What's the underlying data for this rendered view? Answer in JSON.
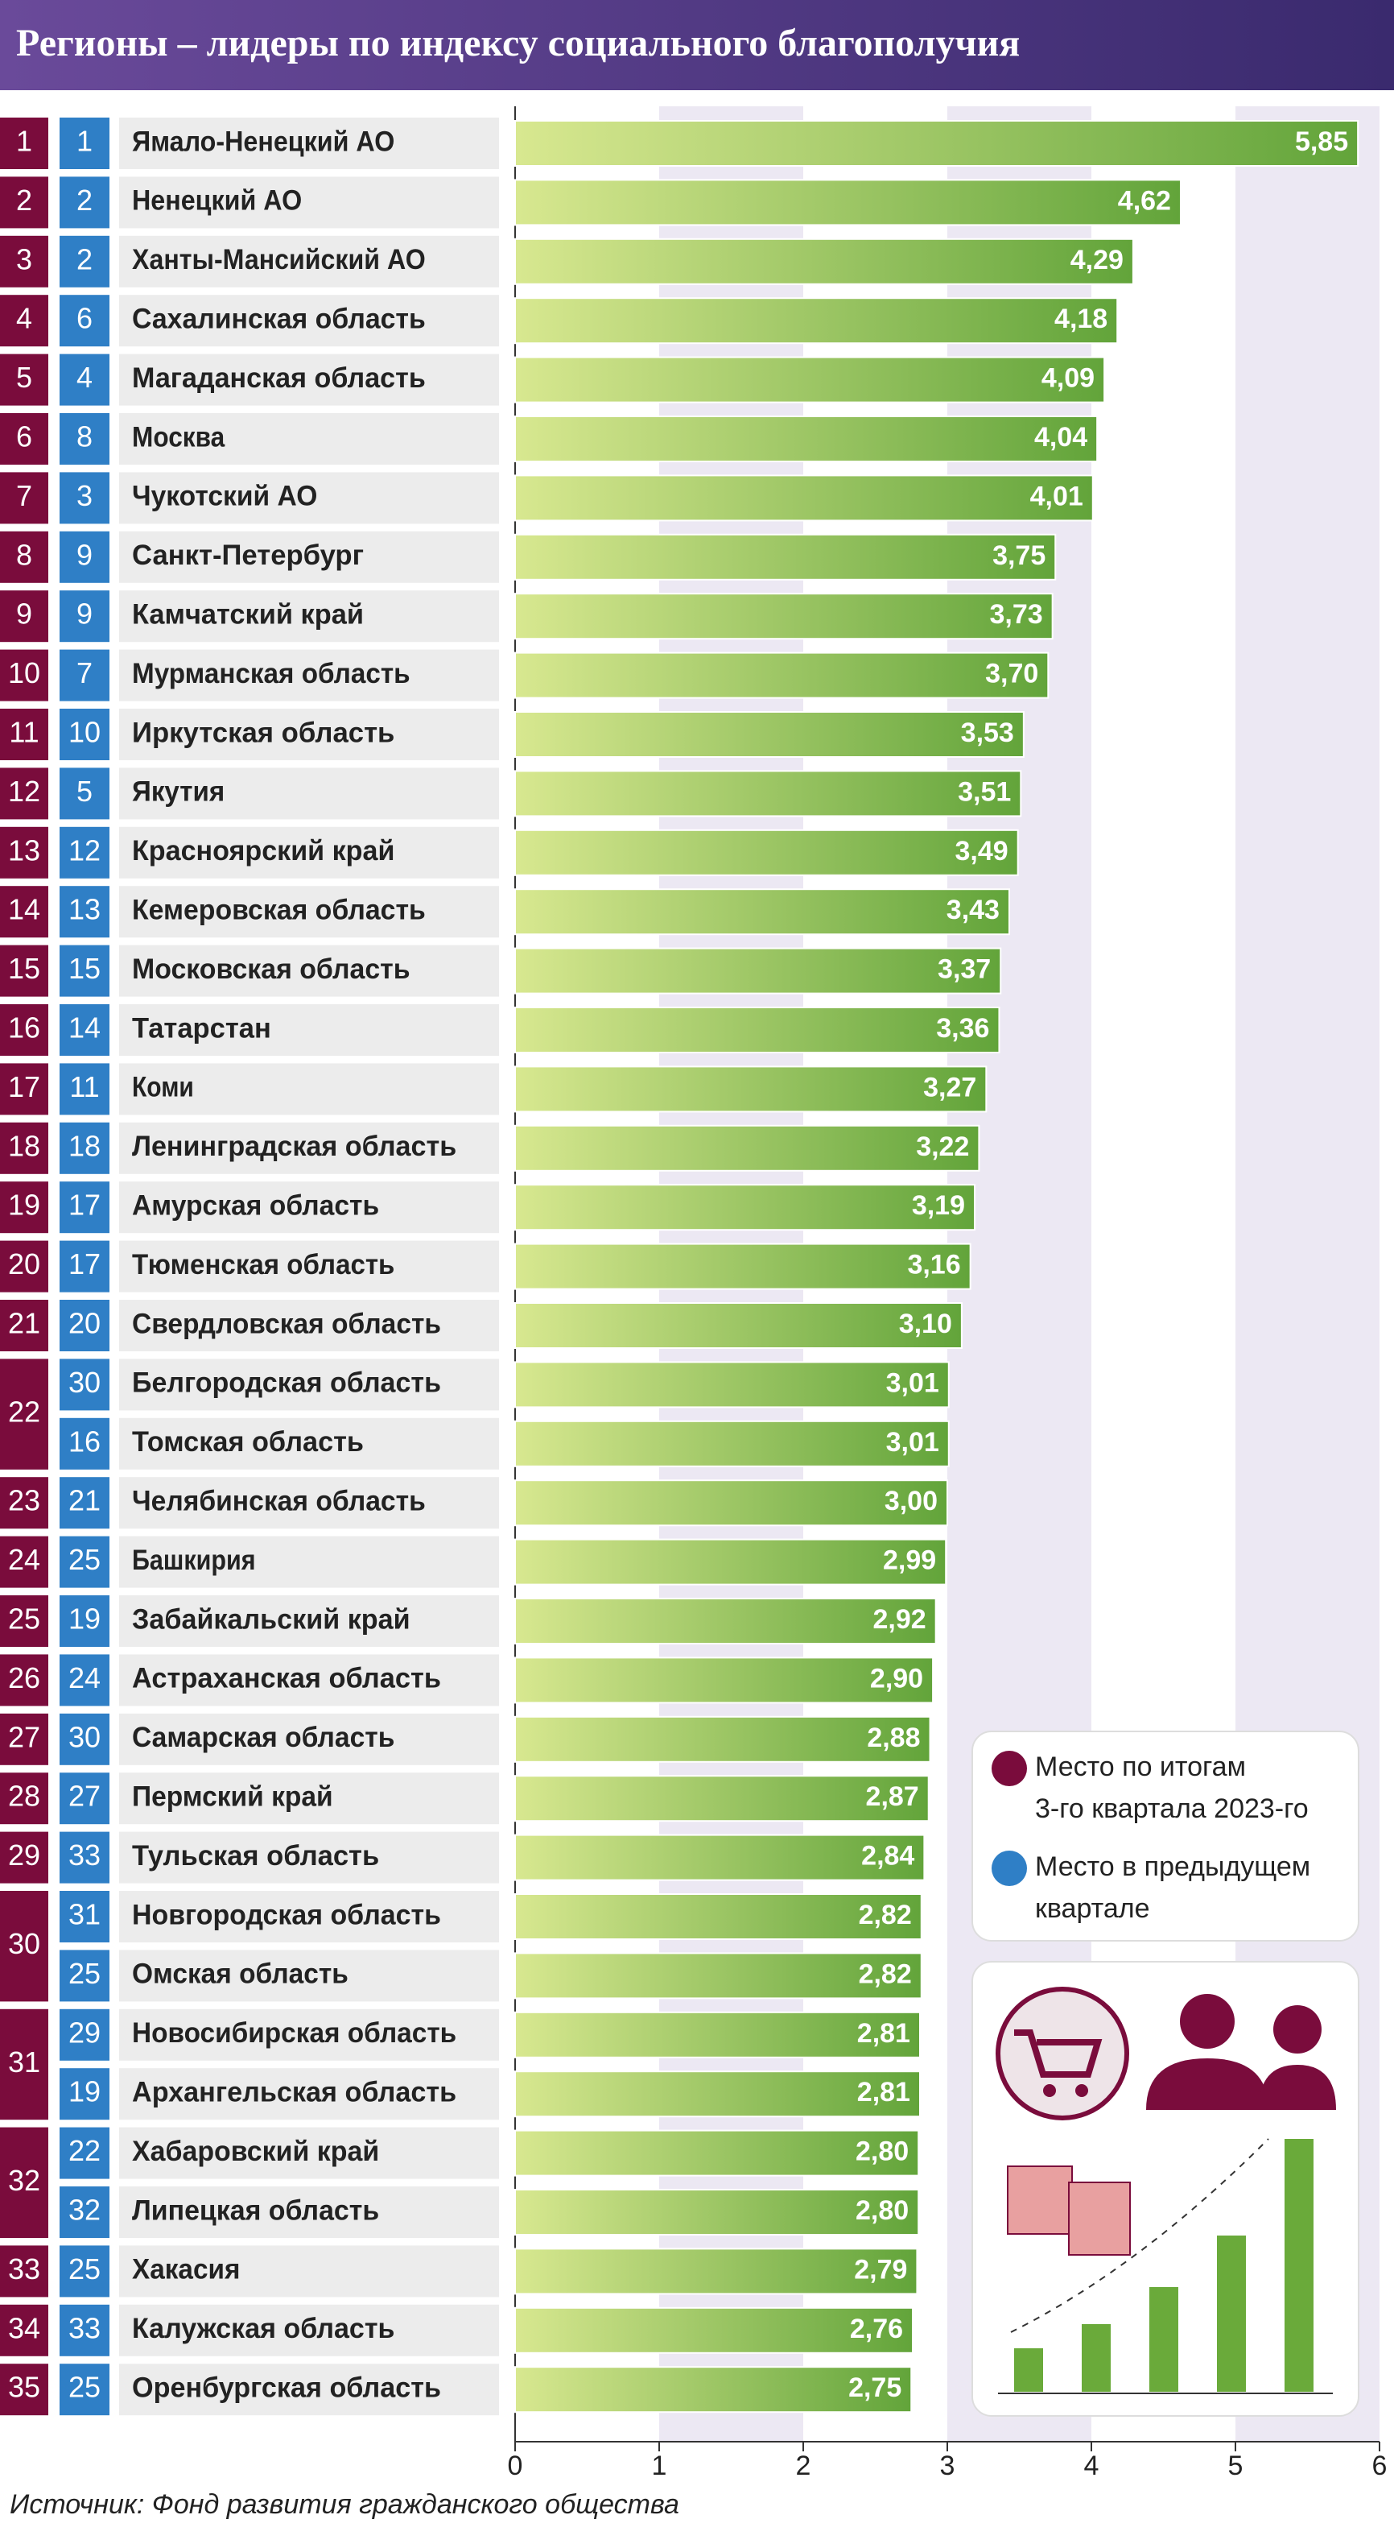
{
  "chart_data": {
    "type": "bar",
    "orientation": "horizontal",
    "title": "Регионы – лидеры по индексу социального благополучия",
    "categories": [
      "Ямало-Ненецкий АО",
      "Ненецкий АО",
      "Ханты-Мансийский АО",
      "Сахалинская область",
      "Магаданская область",
      "Москва",
      "Чукотский АО",
      "Санкт-Петербург",
      "Камчатский край",
      "Мурманская область",
      "Иркутская область",
      "Якутия",
      "Красноярский край",
      "Кемеровская область",
      "Московская область",
      "Татарстан",
      "Коми",
      "Ленинградская область",
      "Амурская область",
      "Тюменская область",
      "Свердловская область",
      "Белгородская область",
      "Томская область",
      "Челябинская область",
      "Башкирия",
      "Забайкальский край",
      "Астраханская область",
      "Самарская область",
      "Пермский край",
      "Тульская область",
      "Новгородская область",
      "Омская область",
      "Новосибирская область",
      "Архангельская область",
      "Хабаровский край",
      "Липецкая область",
      "Хакасия",
      "Калужская область",
      "Оренбургская область"
    ],
    "ranks": [
      1,
      2,
      3,
      4,
      5,
      6,
      7,
      8,
      9,
      10,
      11,
      12,
      13,
      14,
      15,
      16,
      17,
      18,
      19,
      20,
      21,
      22,
      null,
      23,
      24,
      25,
      26,
      27,
      28,
      29,
      30,
      null,
      31,
      null,
      32,
      null,
      33,
      34,
      35
    ],
    "previous_ranks": [
      1,
      2,
      2,
      6,
      4,
      8,
      3,
      9,
      9,
      7,
      10,
      5,
      12,
      13,
      15,
      14,
      11,
      18,
      17,
      17,
      20,
      30,
      16,
      21,
      25,
      19,
      24,
      30,
      27,
      33,
      31,
      25,
      29,
      19,
      22,
      32,
      25,
      33,
      25
    ],
    "values": [
      5.85,
      4.62,
      4.29,
      4.18,
      4.09,
      4.04,
      4.01,
      3.75,
      3.73,
      3.7,
      3.53,
      3.51,
      3.49,
      3.43,
      3.37,
      3.36,
      3.27,
      3.22,
      3.19,
      3.16,
      3.1,
      3.01,
      3.01,
      3.0,
      2.99,
      2.92,
      2.9,
      2.88,
      2.87,
      2.84,
      2.82,
      2.82,
      2.81,
      2.81,
      2.8,
      2.8,
      2.79,
      2.76,
      2.75
    ],
    "value_labels": [
      "5,85",
      "4,62",
      "4,29",
      "4,18",
      "4,09",
      "4,04",
      "4,01",
      "3,75",
      "3,73",
      "3,70",
      "3,53",
      "3,51",
      "3,49",
      "3,43",
      "3,37",
      "3,36",
      "3,27",
      "3,22",
      "3,19",
      "3,16",
      "3,10",
      "3,01",
      "3,01",
      "3,00",
      "2,99",
      "2,92",
      "2,90",
      "2,88",
      "2,87",
      "2,84",
      "2,82",
      "2,82",
      "2,81",
      "2,81",
      "2,80",
      "2,80",
      "2,79",
      "2,76",
      "2,75"
    ],
    "xlim": [
      0,
      6
    ],
    "xticks": [
      0,
      1,
      2,
      3,
      4,
      5,
      6
    ],
    "legend": [
      {
        "label": [
          "Место по итогам",
          "3-го квартала 2023-го"
        ],
        "color": "#7a0c3c"
      },
      {
        "label": [
          "Место в предыдущем",
          "квартале"
        ],
        "color": "#2f7fc6"
      }
    ],
    "source": "Источник: Фонд развития гражданского общества"
  }
}
